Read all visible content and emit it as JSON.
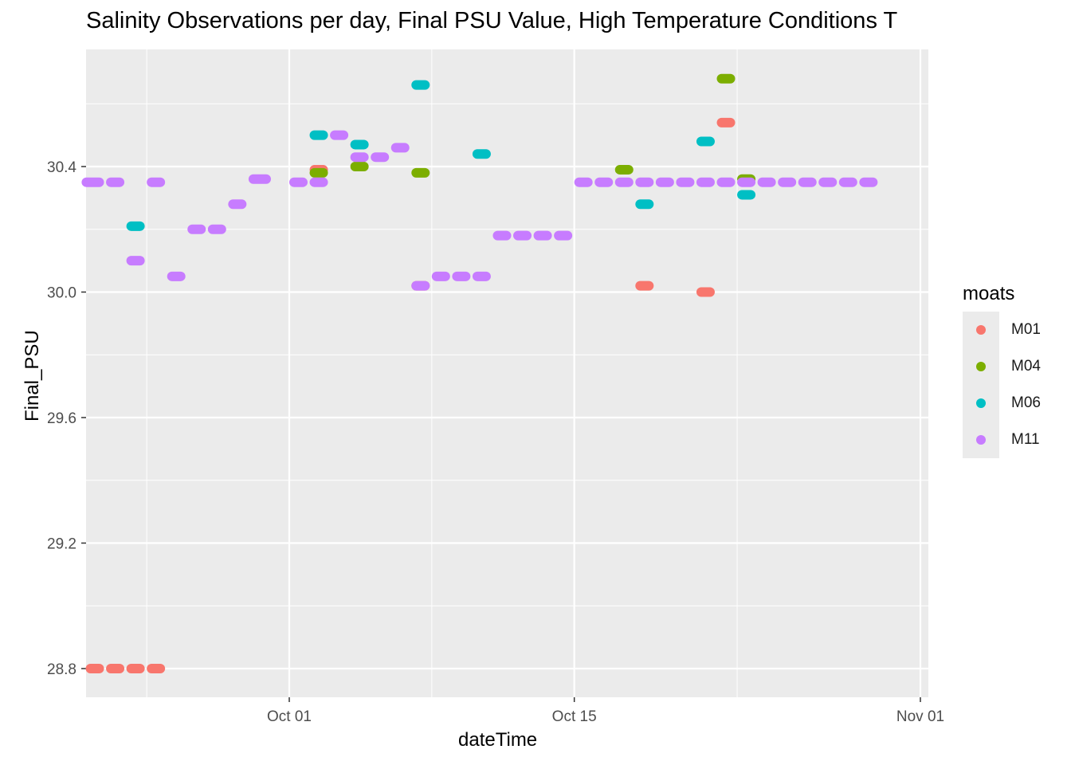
{
  "chart_data": {
    "type": "scatter",
    "title": "Salinity Observations per day, Final PSU Value, High Temperature Conditions T",
    "xlabel": "dateTime",
    "ylabel": "Final_PSU",
    "x_ticks": [
      "Oct 01",
      "Oct 15",
      "Nov 01"
    ],
    "y_ticks": [
      "28.8",
      "29.2",
      "29.6",
      "30.0",
      "30.4"
    ],
    "xlim": [
      "2019-09-20",
      "2019-11-01"
    ],
    "ylim": [
      28.72,
      30.85
    ],
    "grid": true,
    "legend_title": "moats",
    "legend_position": "right",
    "colors": {
      "M01": "#F8766D",
      "M04": "#7CAE00",
      "M06": "#00BFC4",
      "M11": "#C77CFF"
    },
    "series": [
      {
        "name": "M01",
        "segments": [
          [
            "2019-09-21",
            "2019-09-21.9",
            28.8
          ],
          [
            "2019-09-22",
            "2019-09-22.9",
            28.8
          ],
          [
            "2019-09-23",
            "2019-09-23.9",
            28.8
          ],
          [
            "2019-09-24",
            "2019-09-24.9",
            28.8
          ],
          [
            "2019-10-02",
            "2019-10-02.9",
            30.39
          ],
          [
            "2019-10-07",
            "2019-10-07.9",
            30.02
          ],
          [
            "2019-10-18",
            "2019-10-18.9",
            30.02
          ],
          [
            "2019-10-21",
            "2019-10-21.9",
            30.0
          ],
          [
            "2019-10-22",
            "2019-10-22.9",
            30.54
          ]
        ]
      },
      {
        "name": "M04",
        "segments": [
          [
            "2019-10-02",
            "2019-10-02.9",
            30.38
          ],
          [
            "2019-10-04",
            "2019-10-04.9",
            30.4
          ],
          [
            "2019-10-07",
            "2019-10-07.9",
            30.38
          ],
          [
            "2019-10-17",
            "2019-10-17.9",
            30.39
          ],
          [
            "2019-10-22",
            "2019-10-22.9",
            30.68
          ],
          [
            "2019-10-23",
            "2019-10-23.9",
            30.36
          ]
        ]
      },
      {
        "name": "M06",
        "segments": [
          [
            "2019-09-23",
            "2019-09-23.9",
            30.21
          ],
          [
            "2019-10-02",
            "2019-10-02.9",
            30.5
          ],
          [
            "2019-10-04",
            "2019-10-04.9",
            30.47
          ],
          [
            "2019-10-07",
            "2019-10-07.9",
            30.66
          ],
          [
            "2019-10-10",
            "2019-10-10.9",
            30.44
          ],
          [
            "2019-10-18",
            "2019-10-18.9",
            30.28
          ],
          [
            "2019-10-21",
            "2019-10-21.9",
            30.48
          ],
          [
            "2019-10-23",
            "2019-10-23.9",
            30.31
          ]
        ]
      },
      {
        "name": "M11",
        "segments": [
          [
            "2019-09-20.8",
            "2019-09-21.9",
            30.35
          ],
          [
            "2019-09-22",
            "2019-09-22.9",
            30.35
          ],
          [
            "2019-09-23",
            "2019-09-23.9",
            30.1
          ],
          [
            "2019-09-24",
            "2019-09-24.9",
            30.35
          ],
          [
            "2019-09-25",
            "2019-09-25.9",
            30.05
          ],
          [
            "2019-09-26",
            "2019-09-26.9",
            30.2
          ],
          [
            "2019-09-27",
            "2019-09-27.9",
            30.2
          ],
          [
            "2019-09-28",
            "2019-09-28.9",
            30.28
          ],
          [
            "2019-09-29",
            "2019-09-30.1",
            30.36
          ],
          [
            "2019-10-01",
            "2019-10-01.9",
            30.35
          ],
          [
            "2019-10-02",
            "2019-10-02.9",
            30.35
          ],
          [
            "2019-10-03",
            "2019-10-03.9",
            30.5
          ],
          [
            "2019-10-04",
            "2019-10-04.9",
            30.43
          ],
          [
            "2019-10-05",
            "2019-10-05.9",
            30.43
          ],
          [
            "2019-10-06",
            "2019-10-06.9",
            30.46
          ],
          [
            "2019-10-07",
            "2019-10-07.9",
            30.02
          ],
          [
            "2019-10-08",
            "2019-10-08.9",
            30.05
          ],
          [
            "2019-10-09",
            "2019-10-09.9",
            30.05
          ],
          [
            "2019-10-10",
            "2019-10-10.9",
            30.05
          ],
          [
            "2019-10-11",
            "2019-10-11.9",
            30.18
          ],
          [
            "2019-10-12",
            "2019-10-12.9",
            30.18
          ],
          [
            "2019-10-13",
            "2019-10-13.9",
            30.18
          ],
          [
            "2019-10-14",
            "2019-10-14.9",
            30.18
          ],
          [
            "2019-10-15",
            "2019-10-15.9",
            30.35
          ],
          [
            "2019-10-16",
            "2019-10-16.9",
            30.35
          ],
          [
            "2019-10-17",
            "2019-10-17.9",
            30.35
          ],
          [
            "2019-10-18",
            "2019-10-18.9",
            30.35
          ],
          [
            "2019-10-19",
            "2019-10-19.9",
            30.35
          ],
          [
            "2019-10-20",
            "2019-10-20.9",
            30.35
          ],
          [
            "2019-10-21",
            "2019-10-21.9",
            30.35
          ],
          [
            "2019-10-22",
            "2019-10-22.9",
            30.35
          ],
          [
            "2019-10-23",
            "2019-10-23.9",
            30.35
          ],
          [
            "2019-10-24",
            "2019-10-24.9",
            30.35
          ],
          [
            "2019-10-25",
            "2019-10-25.9",
            30.35
          ],
          [
            "2019-10-26",
            "2019-10-26.9",
            30.35
          ],
          [
            "2019-10-27",
            "2019-10-27.9",
            30.35
          ],
          [
            "2019-10-28",
            "2019-10-28.9",
            30.35
          ],
          [
            "2019-10-29",
            "2019-10-29.9",
            30.35
          ]
        ]
      }
    ]
  }
}
